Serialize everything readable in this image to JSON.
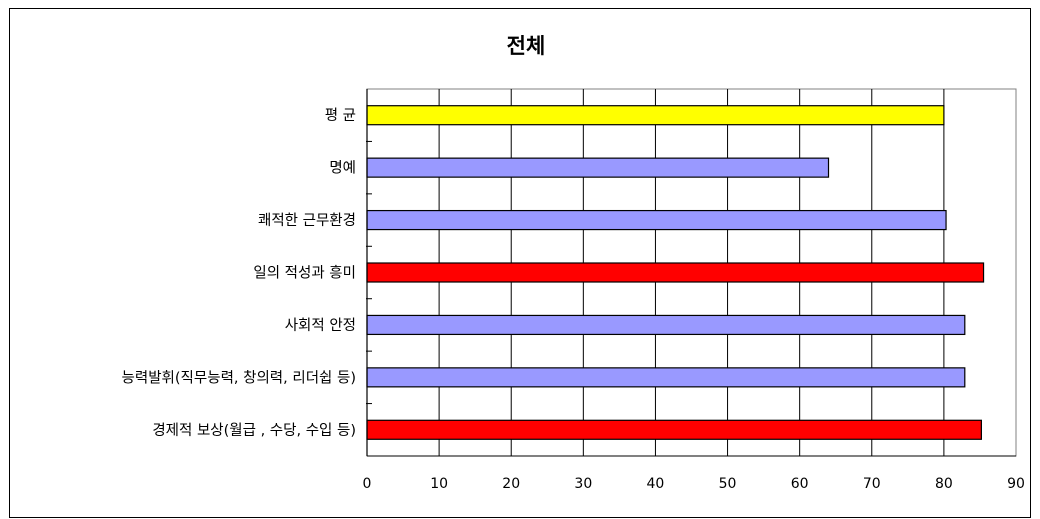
{
  "chart_data": {
    "type": "bar",
    "orientation": "horizontal",
    "title": "전체",
    "xlabel": "",
    "ylabel": "",
    "xlim": [
      0,
      90
    ],
    "x_ticks": [
      "0",
      "10",
      "20",
      "30",
      "40",
      "50",
      "60",
      "70",
      "80",
      "90"
    ],
    "grid": true,
    "legend": "none",
    "categories": [
      "평 균",
      "명예",
      "쾌적한 근무환경",
      "일의 적성과 흥미",
      "사회적 안정",
      "능력발휘(직무능력, 창의력, 리더쉽 등)",
      "경제적 보상(월급 , 수당, 수입 등)"
    ],
    "values": [
      80,
      64,
      80.3,
      85.5,
      82.9,
      82.9,
      85.2
    ],
    "bar_colors": [
      "#ffff00",
      "#9999ff",
      "#9999ff",
      "#ff0000",
      "#9999ff",
      "#9999ff",
      "#ff0000"
    ]
  }
}
